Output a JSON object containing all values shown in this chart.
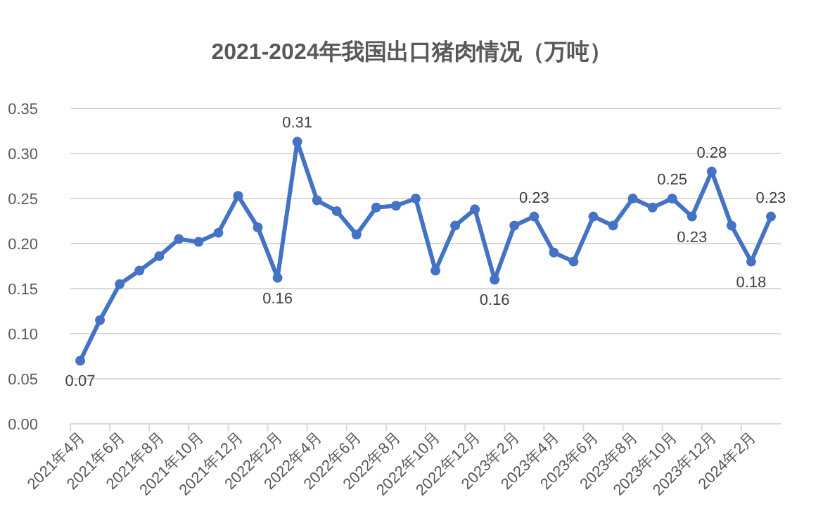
{
  "chart_data": {
    "type": "line",
    "title": "2021-2024年我国出口猪肉情况（万吨）",
    "categories": [
      "2021年4月",
      null,
      "2021年6月",
      null,
      "2021年8月",
      null,
      "2021年10月",
      null,
      "2021年12月",
      null,
      "2022年2月",
      null,
      "2022年4月",
      null,
      "2022年6月",
      null,
      "2022年8月",
      null,
      "2022年10月",
      null,
      "2022年12月",
      null,
      "2023年2月",
      null,
      "2023年4月",
      null,
      "2023年6月",
      null,
      "2023年8月",
      null,
      "2023年10月",
      null,
      "2023年12月",
      null,
      "2024年2月",
      null
    ],
    "series": [
      {
        "color": "#4472c4",
        "values": [
          0.07,
          0.115,
          0.155,
          0.17,
          0.186,
          0.205,
          0.202,
          0.212,
          0.253,
          0.218,
          0.162,
          0.313,
          0.248,
          0.236,
          0.21,
          0.24,
          0.242,
          0.25,
          0.17,
          0.22,
          0.238,
          0.16,
          0.22,
          0.23,
          0.19,
          0.18,
          0.23,
          0.22,
          0.25,
          0.24,
          0.25,
          0.23,
          0.28,
          0.22,
          0.18,
          0.23
        ],
        "value_labels": [
          "0.07",
          null,
          null,
          null,
          null,
          null,
          null,
          null,
          null,
          null,
          "0.16",
          "0.31",
          null,
          null,
          null,
          null,
          null,
          null,
          null,
          null,
          null,
          "0.16",
          null,
          "0.23",
          null,
          null,
          null,
          null,
          null,
          null,
          "0.25",
          "0.23",
          "0.28",
          null,
          "0.18",
          "0.23"
        ]
      }
    ],
    "ylim": [
      0,
      0.35
    ],
    "yticks": [
      {
        "value": 0,
        "label": "0.00"
      },
      {
        "value": 0.05,
        "label": "0.05"
      },
      {
        "value": 0.1,
        "label": "0.10"
      },
      {
        "value": 0.15,
        "label": "0.15"
      },
      {
        "value": 0.2,
        "label": "0.20"
      },
      {
        "value": 0.25,
        "label": "0.25"
      },
      {
        "value": 0.3,
        "label": "0.30"
      },
      {
        "value": 0.35,
        "label": "0.35"
      }
    ],
    "grid": "y",
    "marker": "circle",
    "line_style": "solid"
  }
}
